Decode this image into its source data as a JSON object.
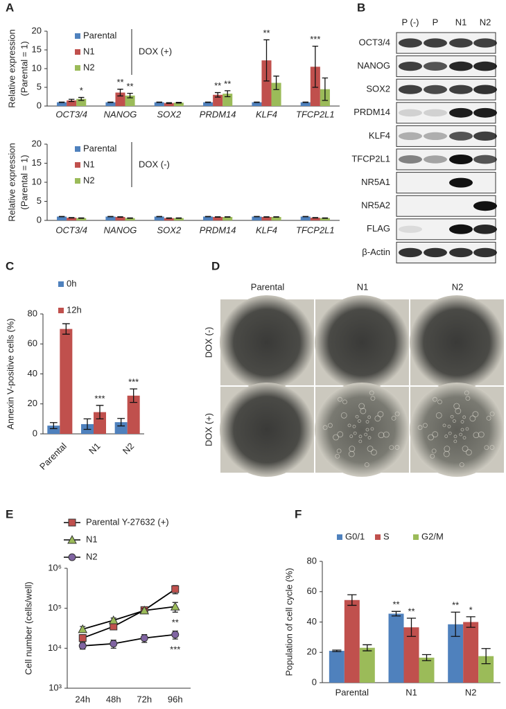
{
  "panel_labels": [
    "A",
    "B",
    "C",
    "D",
    "E",
    "F"
  ],
  "chart_data": [
    {
      "type": "bar",
      "ylabel": [
        "Relative expression",
        "(Parental = 1)"
      ],
      "categories": [
        "OCT3/4",
        "NANOG",
        "SOX2",
        "PRDM14",
        "KLF4",
        "TFCP2L1"
      ],
      "series": [
        {
          "name": "Parental",
          "color": "#4f81bd",
          "values": [
            1,
            1,
            1,
            1,
            1,
            1
          ],
          "errors": [
            0.05,
            0.05,
            0.05,
            0.05,
            0.05,
            0.05
          ]
        },
        {
          "name": "N1",
          "color": "#c0504d",
          "values": [
            1.5,
            3.6,
            0.8,
            3.0,
            12.2,
            10.5
          ],
          "errors": [
            0.3,
            0.9,
            0.1,
            0.6,
            5.5,
            5.5
          ],
          "significance": [
            null,
            "**",
            null,
            "**",
            "**",
            "***"
          ]
        },
        {
          "name": "N2",
          "color": "#9bbb59",
          "values": [
            1.9,
            2.8,
            0.9,
            3.3,
            6.2,
            4.5
          ],
          "errors": [
            0.4,
            0.6,
            0.1,
            0.8,
            1.8,
            3.0
          ],
          "significance": [
            "*",
            "**",
            null,
            "**",
            null,
            null
          ]
        }
      ],
      "annotation": "DOX (+)",
      "ylim": [
        0,
        20
      ],
      "yticks": [
        0,
        5,
        10,
        15,
        20
      ]
    },
    {
      "type": "bar",
      "ylabel": [
        "Relative expression",
        "(Parental = 1)"
      ],
      "categories": [
        "OCT3/4",
        "NANOG",
        "SOX2",
        "PRDM14",
        "KLF4",
        "TFCP2L1"
      ],
      "series": [
        {
          "name": "Parental",
          "color": "#4f81bd",
          "values": [
            1,
            1,
            1,
            1,
            1,
            1
          ],
          "errors": [
            0.05,
            0.05,
            0.05,
            0.05,
            0.05,
            0.05
          ]
        },
        {
          "name": "N1",
          "color": "#c0504d",
          "values": [
            0.7,
            0.9,
            0.6,
            0.9,
            0.9,
            0.7
          ],
          "errors": [
            0.05,
            0.05,
            0.05,
            0.05,
            0.05,
            0.05
          ]
        },
        {
          "name": "N2",
          "color": "#9bbb59",
          "values": [
            0.6,
            0.6,
            0.6,
            0.9,
            0.9,
            0.6
          ],
          "errors": [
            0.05,
            0.05,
            0.05,
            0.05,
            0.05,
            0.05
          ]
        }
      ],
      "annotation": "DOX (-)",
      "ylim": [
        0,
        20
      ],
      "yticks": [
        0,
        5,
        10,
        15,
        20
      ]
    },
    {
      "type": "bar",
      "ylabel": "Annexin V-positive cells (%)",
      "categories": [
        "Parental",
        "N1",
        "N2"
      ],
      "series": [
        {
          "name": "0h",
          "color": "#4f81bd",
          "values": [
            5.5,
            6.5,
            7.8
          ],
          "errors": [
            2,
            3.5,
            2.5
          ]
        },
        {
          "name": "12h",
          "color": "#c0504d",
          "values": [
            70,
            14.5,
            25.5
          ],
          "errors": [
            3.5,
            4.5,
            4.5
          ],
          "significance": [
            null,
            "***",
            "***"
          ]
        }
      ],
      "ylim": [
        0,
        80
      ],
      "yticks": [
        0,
        20,
        40,
        60,
        80
      ]
    },
    {
      "type": "line",
      "ylabel": "Cell number (cells/well)",
      "log_scale": true,
      "categories": [
        "24h",
        "48h",
        "72h",
        "96h"
      ],
      "line_color": "#000000",
      "series": [
        {
          "name": "Parental Y-27632 (+)",
          "color": "#c0504d",
          "marker": "square",
          "values": [
            18000,
            35000,
            90000,
            300000
          ],
          "errors": [
            4000,
            5000,
            12000,
            70000
          ]
        },
        {
          "name": "N1",
          "color": "#9bbb59",
          "marker": "triangle",
          "values": [
            30000,
            50000,
            88000,
            110000
          ],
          "errors": [
            5000,
            7000,
            10000,
            30000
          ],
          "significance": [
            null,
            null,
            null,
            "**"
          ]
        },
        {
          "name": "N2",
          "color": "#8064a2",
          "marker": "circle",
          "values": [
            11500,
            13000,
            18000,
            22000
          ],
          "errors": [
            2000,
            3000,
            4000,
            5000
          ],
          "significance": [
            null,
            null,
            null,
            "***"
          ]
        }
      ],
      "ylim": [
        1000,
        1000000
      ],
      "yticks": [
        {
          "value": 1000,
          "label": "10³"
        },
        {
          "value": 10000,
          "label": "10⁴"
        },
        {
          "value": 100000,
          "label": "10⁵"
        },
        {
          "value": 1000000,
          "label": "10⁶"
        }
      ]
    },
    {
      "type": "bar",
      "ylabel": "Population of cell cycle (%)",
      "categories": [
        "Parental",
        "N1",
        "N2"
      ],
      "series": [
        {
          "name": "G0/1",
          "color": "#4f81bd",
          "values": [
            21,
            45.5,
            38.5
          ],
          "errors": [
            0.5,
            1.5,
            8
          ],
          "significance": [
            null,
            "**",
            "**"
          ]
        },
        {
          "name": "S",
          "color": "#c0504d",
          "values": [
            54.5,
            36.5,
            40
          ],
          "errors": [
            3.5,
            6,
            3.5
          ],
          "significance": [
            null,
            "**",
            "*"
          ]
        },
        {
          "name": "G2/M",
          "color": "#9bbb59",
          "values": [
            23,
            16.5,
            17.5
          ],
          "errors": [
            2,
            2,
            5
          ]
        }
      ],
      "ylim": [
        0,
        80
      ],
      "yticks": [
        0,
        20,
        40,
        60,
        80
      ]
    }
  ],
  "western_blot": {
    "lanes": [
      "P (-)",
      "P",
      "N1",
      "N2"
    ],
    "proteins": [
      "OCT3/4",
      "NANOG",
      "SOX2",
      "PRDM14",
      "KLF4",
      "TFCP2L1",
      "NR5A1",
      "NR5A2",
      "FLAG",
      "β-Actin"
    ]
  },
  "micrographs": {
    "columns": [
      "Parental",
      "N1",
      "N2"
    ],
    "rows": [
      "DOX (-)",
      "DOX (+)"
    ]
  }
}
